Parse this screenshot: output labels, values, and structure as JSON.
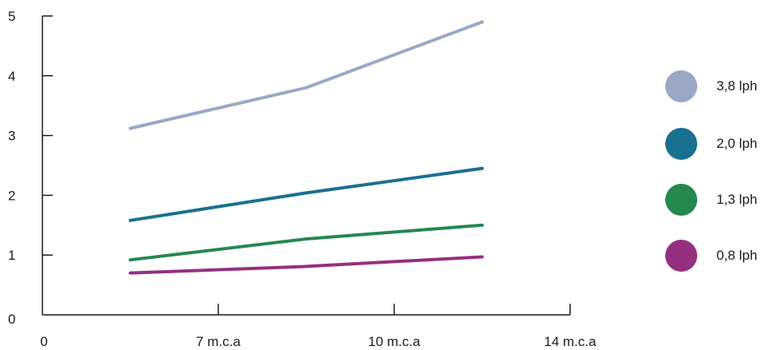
{
  "chart_data": {
    "type": "line",
    "title": "",
    "xlabel": "",
    "ylabel": "",
    "x_axis": {
      "categories": [
        "7 m.c.a",
        "10 m.c.a",
        "14 m.c.a"
      ],
      "origin_label": "0"
    },
    "y_axis": {
      "ylim": [
        0,
        5
      ],
      "ticks": [
        "0",
        "1",
        "2",
        "3",
        "4",
        "5"
      ]
    },
    "x_points": [
      1.5,
      4.5,
      7.5
    ],
    "x_range": [
      0,
      9
    ],
    "series": [
      {
        "name": "3,8 lph",
        "color": "#9aa8c6",
        "values": [
          3.12,
          3.8,
          4.9
        ]
      },
      {
        "name": "2,0 lph",
        "color": "#19708f",
        "values": [
          1.58,
          2.04,
          2.45
        ]
      },
      {
        "name": "1,3 lph",
        "color": "#24884f",
        "values": [
          0.92,
          1.27,
          1.5
        ]
      },
      {
        "name": "0,8 lph",
        "color": "#94307f",
        "values": [
          0.7,
          0.81,
          0.97
        ]
      }
    ],
    "grid": false,
    "legend_position": "right"
  }
}
